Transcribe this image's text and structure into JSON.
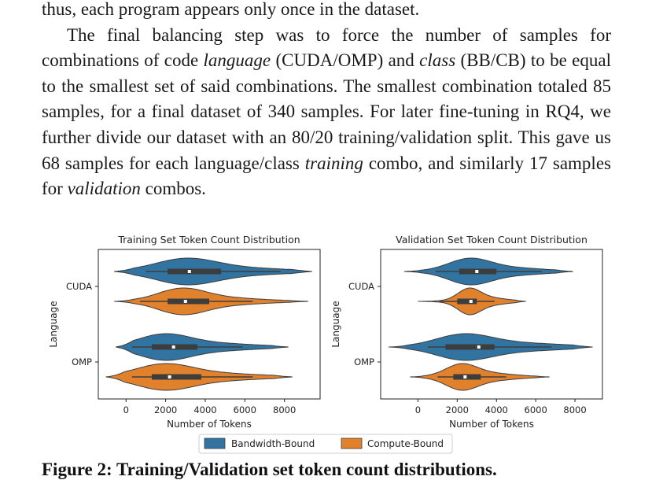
{
  "paragraphs": {
    "p1": "thus, each program appears only once in the dataset.",
    "p2_a": "The final balancing step was to force the number of samples for combinations of code ",
    "p2_lang": "language",
    "p2_b": " (CUDA/OMP) and ",
    "p2_class": "class",
    "p2_c": " (BB/CB) to be equal to the smallest set of said combinations. The smallest combination totaled 85 samples, for a final dataset of 340 samples. For later fine-tuning in RQ4, we further divide our dataset with an 80/20 training/validation split. This gave us 68 samples for each language/class ",
    "p2_training": "training",
    "p2_d": " combo, and similarly 17 samples for ",
    "p2_validation": "validation",
    "p2_e": " combos."
  },
  "figure": {
    "caption": "Figure 2: Training/Validation set token count distributions."
  },
  "colors": {
    "bandwidth": "#3274a1",
    "compute": "#e1812c",
    "box": "#3d3d3d"
  },
  "chart_data": [
    {
      "type": "violin",
      "title": "Training Set Token Count Distribution",
      "xlabel": "Number of Tokens",
      "ylabel": "Language",
      "xlim": [
        -1400,
        9800
      ],
      "xticks": [
        0,
        2000,
        4000,
        6000,
        8000
      ],
      "categories": [
        "CUDA",
        "OMP"
      ],
      "grid": false,
      "series": [
        {
          "name": "Bandwidth-Bound",
          "values": {
            "CUDA": {
              "min": -600,
              "max": 9400,
              "q1": 2100,
              "median": 3200,
              "q3": 4800,
              "whisker_low": 1000,
              "whisker_high": 7800,
              "peak": 3000
            },
            "OMP": {
              "min": -500,
              "max": 8200,
              "q1": 1300,
              "median": 2400,
              "q3": 3600,
              "whisker_low": 300,
              "whisker_high": 5900,
              "peak": 1900
            }
          }
        },
        {
          "name": "Compute-Bound",
          "values": {
            "CUDA": {
              "min": -600,
              "max": 9200,
              "q1": 2100,
              "median": 3000,
              "q3": 4200,
              "whisker_low": 700,
              "whisker_high": 6400,
              "peak": 2800
            },
            "OMP": {
              "min": -1000,
              "max": 8400,
              "q1": 1300,
              "median": 2200,
              "q3": 3800,
              "whisker_low": 300,
              "whisker_high": 6400,
              "peak": 1900
            }
          }
        }
      ]
    },
    {
      "type": "violin",
      "title": "Validation Set Token Count Distribution",
      "xlabel": "Number of Tokens",
      "ylabel": "Language",
      "xlim": [
        -1900,
        9400
      ],
      "xticks": [
        0,
        2000,
        4000,
        6000,
        8000
      ],
      "categories": [
        "CUDA",
        "OMP"
      ],
      "grid": false,
      "series": [
        {
          "name": "Bandwidth-Bound",
          "values": {
            "CUDA": {
              "min": -700,
              "max": 7900,
              "q1": 2100,
              "median": 3000,
              "q3": 4000,
              "whisker_low": 900,
              "whisker_high": 6300,
              "peak": 2600
            },
            "OMP": {
              "min": -1500,
              "max": 8900,
              "q1": 1400,
              "median": 3100,
              "q3": 3900,
              "whisker_low": 500,
              "whisker_high": 6800,
              "peak": 2300
            }
          }
        },
        {
          "name": "Compute-Bound",
          "values": {
            "CUDA": {
              "min": 0,
              "max": 5500,
              "q1": 2000,
              "median": 2700,
              "q3": 3000,
              "whisker_low": 1100,
              "whisker_high": 3900,
              "peak": 2600
            },
            "OMP": {
              "min": -400,
              "max": 6700,
              "q1": 1800,
              "median": 2400,
              "q3": 3200,
              "whisker_low": 1000,
              "whisker_high": 4500,
              "peak": 2200
            }
          }
        }
      ]
    }
  ],
  "legend": {
    "items": [
      {
        "label": "Bandwidth-Bound",
        "color": "#3274a1"
      },
      {
        "label": "Compute-Bound",
        "color": "#e1812c"
      }
    ]
  }
}
